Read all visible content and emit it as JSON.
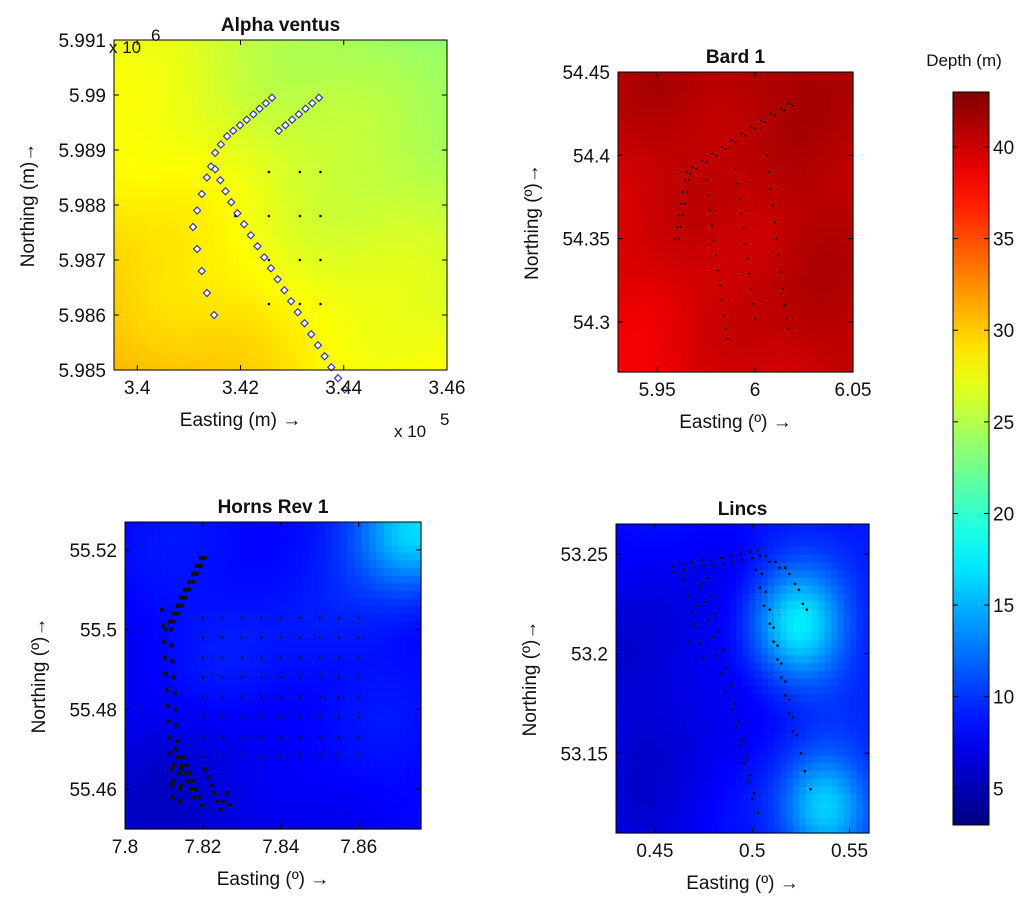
{
  "figure": {
    "colorbar": {
      "label": "Depth (m)",
      "min": 3,
      "max": 43,
      "ticks": [
        5,
        10,
        15,
        20,
        25,
        30,
        35,
        40
      ],
      "colormap": "jet"
    }
  },
  "chart_data": [
    {
      "id": "alpha",
      "type": "heatmap",
      "title": "Alpha ventus",
      "xlabel": "Easting (m) →",
      "ylabel": "Northing (m)→",
      "x_multiplier": "x 10",
      "x_multiplier_exp": "5",
      "y_multiplier": "x 10",
      "y_multiplier_exp": "6",
      "xlim": [
        3.3955,
        3.46
      ],
      "ylim": [
        5.985,
        5.991
      ],
      "xticks": [
        3.4,
        3.42,
        3.44,
        3.46
      ],
      "xtick_labels": [
        "3.4",
        "3.42",
        "3.44",
        "3.46"
      ],
      "yticks": [
        5.985,
        5.986,
        5.987,
        5.988,
        5.989,
        5.99,
        5.991
      ],
      "ytick_labels": [
        "5.985",
        "5.986",
        "5.987",
        "5.988",
        "5.989",
        "5.99",
        "5.991"
      ],
      "depth_field": {
        "base": 28,
        "gradient": [
          -2.5,
          3.5
        ],
        "blobs": [
          [
            0.78,
            0.14,
            0.45,
            -1.2
          ],
          [
            0.8,
            0.85,
            0.35,
            -0.8
          ]
        ]
      },
      "series": [
        {
          "marker": "diamond",
          "color": "#3333aa",
          "size": 3.5,
          "x": [
            3.4149,
            3.4135,
            3.4125,
            3.4116,
            3.4108,
            3.4116,
            3.4125,
            3.4135,
            3.4143,
            3.4151,
            3.4162,
            3.4174,
            3.4186,
            3.4199,
            3.4212,
            3.4225,
            3.4237,
            3.4249,
            3.4261,
            3.4274,
            3.4287,
            3.43,
            3.4313,
            3.4326,
            3.4339,
            3.4352,
            3.4151,
            3.4161,
            3.4171,
            3.4182,
            3.4194,
            3.4207,
            3.422,
            3.4233,
            3.4246,
            3.4259,
            3.4272,
            3.4285,
            3.4298,
            3.4311,
            3.4324,
            3.4337,
            3.435,
            3.4363,
            3.4376,
            3.4389,
            3.4402
          ],
          "y": [
            5.986,
            5.9864,
            5.9868,
            5.9872,
            5.9876,
            5.9879,
            5.9882,
            5.9885,
            5.9887,
            5.98895,
            5.9891,
            5.98925,
            5.98935,
            5.98945,
            5.98955,
            5.98965,
            5.98975,
            5.98985,
            5.98995,
            5.98935,
            5.98945,
            5.98955,
            5.98965,
            5.98975,
            5.98985,
            5.98995,
            5.98865,
            5.98845,
            5.98825,
            5.98805,
            5.98785,
            5.98765,
            5.98745,
            5.98725,
            5.98705,
            5.98685,
            5.98665,
            5.98645,
            5.98625,
            5.98605,
            5.98585,
            5.98565,
            5.98545,
            5.98525,
            5.98505,
            5.98485,
            5.98465
          ]
        },
        {
          "marker": "dot",
          "color": "#111111",
          "size": 1.3,
          "x": [
            3.4255,
            3.4315,
            3.4355,
            3.419,
            3.4255,
            3.4315,
            3.4355,
            3.4255,
            3.4315,
            3.4355,
            3.4255,
            3.4315,
            3.4355
          ],
          "y": [
            5.9886,
            5.9886,
            5.9886,
            5.9878,
            5.9878,
            5.9878,
            5.9878,
            5.987,
            5.987,
            5.987,
            5.9862,
            5.9862,
            5.9862
          ]
        }
      ]
    },
    {
      "id": "bard",
      "type": "heatmap",
      "title": "Bard 1",
      "xlabel": "Easting (º) →",
      "ylabel": "Northing (º)→",
      "xlim": [
        5.93,
        6.05
      ],
      "ylim": [
        54.27,
        54.45
      ],
      "xticks": [
        5.95,
        6,
        6.05
      ],
      "xtick_labels": [
        "5.95",
        "6",
        "6.05"
      ],
      "yticks": [
        54.3,
        54.35,
        54.4,
        54.45
      ],
      "ytick_labels": [
        "54.3",
        "54.35",
        "54.4",
        "54.45"
      ],
      "depth_field": {
        "base": 40,
        "gradient": [
          0.5,
          -2.5
        ],
        "blobs": [
          [
            0.8,
            0.9,
            0.3,
            1.5
          ]
        ]
      },
      "series": [
        {
          "marker": "dot",
          "color": "#111111",
          "size": 1.1,
          "x": [
            5.959,
            5.96,
            5.961,
            5.962,
            5.963,
            5.964,
            5.965,
            5.968,
            5.973,
            5.978,
            5.983,
            5.988,
            5.993,
            5.998,
            6.003,
            6.008,
            6.013,
            6.017,
            5.961,
            5.962,
            5.963,
            5.964,
            5.965,
            5.966,
            5.967,
            5.97,
            5.975,
            5.98,
            5.985,
            5.99,
            5.995,
            6.0,
            6.005,
            6.01,
            6.015,
            6.019,
            5.975,
            5.976,
            5.977,
            5.978,
            5.979,
            5.98,
            5.981,
            5.982,
            5.983,
            5.984,
            5.985,
            5.986,
            5.99,
            5.991,
            5.992,
            5.993,
            5.994,
            5.995,
            5.996,
            5.997,
            5.998,
            5.999,
            6.0,
            6.006,
            6.007,
            6.008,
            6.009,
            6.01,
            6.011,
            6.012,
            6.013,
            6.014,
            6.015,
            6.016,
            6.017
          ],
          "y": [
            54.35,
            54.357,
            54.364,
            54.371,
            54.378,
            54.385,
            54.39,
            54.393,
            54.397,
            54.401,
            54.405,
            54.409,
            54.413,
            54.417,
            54.421,
            54.425,
            54.428,
            54.431,
            54.35,
            54.357,
            54.364,
            54.371,
            54.378,
            54.385,
            54.389,
            54.392,
            54.396,
            54.4,
            54.404,
            54.408,
            54.412,
            54.416,
            54.42,
            54.424,
            54.427,
            54.43,
            54.385,
            54.376,
            54.367,
            54.358,
            54.349,
            54.34,
            54.331,
            54.322,
            54.313,
            54.304,
            54.296,
            54.29,
            54.392,
            54.383,
            54.374,
            54.365,
            54.356,
            54.347,
            54.338,
            54.329,
            54.32,
            54.311,
            54.302,
            54.4,
            54.39,
            54.38,
            54.37,
            54.36,
            54.35,
            54.34,
            54.33,
            54.32,
            54.31,
            54.302,
            54.296
          ]
        }
      ]
    },
    {
      "id": "horns",
      "type": "heatmap",
      "title": "Horns Rev 1",
      "xlabel": "Easting (º) →",
      "ylabel": "Northing (º)→",
      "xlim": [
        7.8,
        7.876
      ],
      "ylim": [
        55.45,
        55.527
      ],
      "xticks": [
        7.8,
        7.82,
        7.84,
        7.86
      ],
      "xtick_labels": [
        "7.8",
        "7.82",
        "7.84",
        "7.86"
      ],
      "yticks": [
        55.46,
        55.48,
        55.5,
        55.52
      ],
      "ytick_labels": [
        "55.46",
        "55.48",
        "55.5",
        "55.52"
      ],
      "depth_field": {
        "base": 8,
        "gradient": [
          0,
          0
        ],
        "blobs": [
          [
            0.98,
            0.02,
            0.14,
            8.5
          ],
          [
            0.45,
            0.5,
            0.35,
            1.2
          ],
          [
            0.2,
            0.95,
            0.3,
            -2.5
          ]
        ]
      },
      "series": [
        {
          "marker": "square",
          "color": "#111111",
          "size": 2.0,
          "x": [
            7.8195,
            7.8185,
            7.8175,
            7.8165,
            7.8155,
            7.8145,
            7.8135,
            7.8125,
            7.8115,
            7.8105,
            7.8095,
            7.8098,
            7.81,
            7.8103,
            7.8105,
            7.8108,
            7.811,
            7.8112,
            7.8114,
            7.8116,
            7.8118,
            7.812,
            7.8122,
            7.8124,
            7.8126,
            7.813,
            7.8138,
            7.8146,
            7.8154,
            7.8162,
            7.817,
            7.8178,
            7.8205,
            7.8195,
            7.8185,
            7.8175,
            7.8165,
            7.8155,
            7.8145,
            7.8135,
            7.8125,
            7.8118,
            7.812,
            7.8122,
            7.8125,
            7.8128,
            7.813,
            7.8132,
            7.8134,
            7.8136,
            7.8138,
            7.814,
            7.8142,
            7.8144,
            7.8146,
            7.815,
            7.8158,
            7.8166,
            7.8174,
            7.8182,
            7.819,
            7.8198,
            7.8206,
            7.8214,
            7.8222,
            7.823,
            7.8238,
            7.8246,
            7.8254,
            7.8262,
            7.827
          ],
          "y": [
            55.518,
            55.516,
            55.514,
            55.512,
            55.51,
            55.508,
            55.506,
            55.504,
            55.502,
            55.5,
            55.505,
            55.501,
            55.497,
            55.493,
            55.489,
            55.485,
            55.481,
            55.477,
            55.473,
            55.469,
            55.465,
            55.461,
            55.458,
            55.462,
            55.466,
            55.47,
            55.468,
            55.466,
            55.464,
            55.462,
            55.46,
            55.458,
            55.518,
            55.516,
            55.514,
            55.512,
            55.51,
            55.508,
            55.506,
            55.504,
            55.502,
            55.5,
            55.496,
            55.492,
            55.488,
            55.484,
            55.48,
            55.476,
            55.472,
            55.468,
            55.464,
            55.46,
            55.457,
            55.461,
            55.465,
            55.468,
            55.466,
            55.464,
            55.462,
            55.46,
            55.458,
            55.456,
            55.465,
            55.463,
            55.461,
            55.459,
            55.457,
            55.455,
            55.457,
            55.459,
            55.456
          ]
        },
        {
          "marker": "dot",
          "color": "#111111",
          "size": 1.2,
          "x": [
            7.82,
            7.825,
            7.83,
            7.835,
            7.84,
            7.845,
            7.85,
            7.855,
            7.86,
            7.82,
            7.825,
            7.83,
            7.835,
            7.84,
            7.845,
            7.85,
            7.855,
            7.86,
            7.82,
            7.825,
            7.83,
            7.835,
            7.84,
            7.845,
            7.85,
            7.855,
            7.86,
            7.82,
            7.825,
            7.83,
            7.835,
            7.84,
            7.845,
            7.85,
            7.855,
            7.86,
            7.82,
            7.825,
            7.83,
            7.835,
            7.84,
            7.845,
            7.85,
            7.855,
            7.86,
            7.82,
            7.825,
            7.83,
            7.835,
            7.84,
            7.845,
            7.85,
            7.855,
            7.86,
            7.82,
            7.825,
            7.83,
            7.835,
            7.84,
            7.845,
            7.85,
            7.855,
            7.86,
            7.82,
            7.825,
            7.83,
            7.835,
            7.84,
            7.845,
            7.85,
            7.855,
            7.86
          ],
          "y": [
            55.503,
            55.503,
            55.503,
            55.503,
            55.503,
            55.503,
            55.503,
            55.503,
            55.503,
            55.498,
            55.498,
            55.498,
            55.498,
            55.498,
            55.498,
            55.498,
            55.498,
            55.498,
            55.493,
            55.493,
            55.493,
            55.493,
            55.493,
            55.493,
            55.493,
            55.493,
            55.493,
            55.488,
            55.488,
            55.488,
            55.488,
            55.488,
            55.488,
            55.488,
            55.488,
            55.488,
            55.483,
            55.483,
            55.483,
            55.483,
            55.483,
            55.483,
            55.483,
            55.483,
            55.483,
            55.478,
            55.478,
            55.478,
            55.478,
            55.478,
            55.478,
            55.478,
            55.478,
            55.478,
            55.473,
            55.473,
            55.473,
            55.473,
            55.473,
            55.473,
            55.473,
            55.473,
            55.473,
            55.468,
            55.468,
            55.468,
            55.468,
            55.468,
            55.468,
            55.468,
            55.468,
            55.468
          ]
        }
      ]
    },
    {
      "id": "lincs",
      "type": "heatmap",
      "title": "Lincs",
      "xlabel": "Easting (º) →",
      "ylabel": "Northing (º)→",
      "xlim": [
        0.43,
        0.56
      ],
      "ylim": [
        53.11,
        53.265
      ],
      "xticks": [
        0.45,
        0.5,
        0.55
      ],
      "xtick_labels": [
        "0.45",
        "0.5",
        "0.55"
      ],
      "yticks": [
        53.15,
        53.2,
        53.25
      ],
      "ytick_labels": [
        "53.15",
        "53.2",
        "53.25"
      ],
      "depth_field": {
        "base": 9,
        "gradient": [
          0,
          0
        ],
        "blobs": [
          [
            0.72,
            0.33,
            0.13,
            8.5
          ],
          [
            0.82,
            0.92,
            0.12,
            7.5
          ],
          [
            0.15,
            0.4,
            0.3,
            -2.5
          ],
          [
            0.1,
            0.95,
            0.25,
            -2
          ]
        ]
      },
      "series": [
        {
          "marker": "dot",
          "color": "#111111",
          "size": 1.3,
          "x": [
            0.459,
            0.464,
            0.469,
            0.474,
            0.479,
            0.484,
            0.489,
            0.494,
            0.499,
            0.503,
            0.507,
            0.512,
            0.517,
            0.522,
            0.526,
            0.46,
            0.465,
            0.47,
            0.475,
            0.48,
            0.485,
            0.49,
            0.495,
            0.5,
            0.504,
            0.509,
            0.514,
            0.519,
            0.524,
            0.528,
            0.465,
            0.467,
            0.469,
            0.471,
            0.473,
            0.475,
            0.477,
            0.479,
            0.481,
            0.483,
            0.485,
            0.487,
            0.489,
            0.491,
            0.493,
            0.495,
            0.497,
            0.499,
            0.501,
            0.503,
            0.505,
            0.507,
            0.509,
            0.511,
            0.513,
            0.515,
            0.517,
            0.519,
            0.521,
            0.523,
            0.525,
            0.527,
            0.53,
            0.468,
            0.47,
            0.472,
            0.473,
            0.474,
            0.476,
            0.478,
            0.48,
            0.482,
            0.484,
            0.486,
            0.49,
            0.492,
            0.494,
            0.496,
            0.498,
            0.5,
            0.502,
            0.504,
            0.506,
            0.509,
            0.511,
            0.513,
            0.515,
            0.517,
            0.519,
            0.521
          ],
          "y": [
            53.244,
            53.245,
            53.246,
            53.247,
            53.247,
            53.248,
            53.249,
            53.25,
            53.251,
            53.252,
            53.249,
            53.246,
            53.243,
            53.235,
            53.225,
            53.241,
            53.242,
            53.243,
            53.244,
            53.244,
            53.245,
            53.246,
            53.247,
            53.248,
            53.249,
            53.246,
            53.243,
            53.24,
            53.232,
            53.222,
            53.237,
            53.229,
            53.221,
            53.213,
            53.205,
            53.198,
            53.238,
            53.229,
            53.22,
            53.211,
            53.202,
            53.193,
            53.184,
            53.175,
            53.166,
            53.157,
            53.148,
            53.139,
            53.13,
            53.12,
            53.24,
            53.231,
            53.222,
            53.213,
            53.204,
            53.195,
            53.186,
            53.177,
            53.168,
            53.159,
            53.15,
            53.141,
            53.132,
            53.206,
            53.215,
            53.224,
            53.233,
            53.235,
            53.226,
            53.217,
            53.208,
            53.199,
            53.19,
            53.181,
            53.172,
            53.163,
            53.154,
            53.145,
            53.136,
            53.127,
            53.242,
            53.233,
            53.224,
            53.215,
            53.206,
            53.197,
            53.188,
            53.179,
            53.17,
            53.161
          ]
        }
      ]
    }
  ]
}
